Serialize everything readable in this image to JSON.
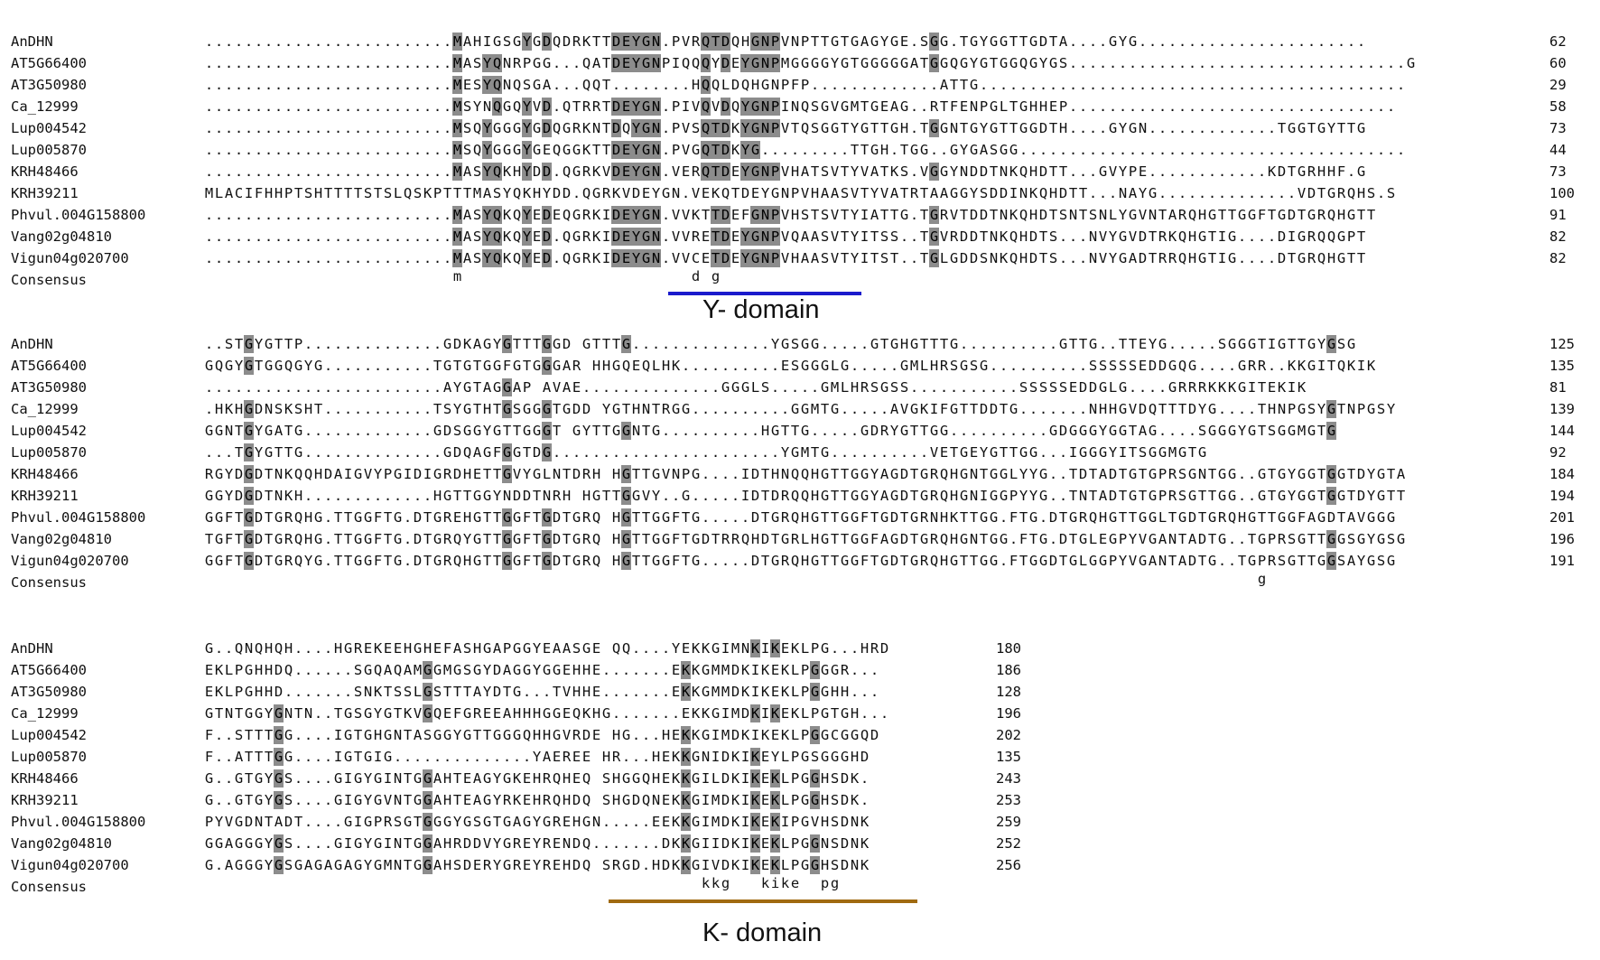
{
  "block1": {
    "names": [
      "AnDHN",
      "AT5G66400",
      "AT3G50980",
      "Ca_12999",
      "Lup004542",
      "Lup005870",
      "KRH48466",
      "KRH39211",
      "Phvul.004G158800",
      "Vang02g04810",
      "Vigun04g020700"
    ],
    "rows": [
      ".........................MAHIGSGYGDQDRKTTDEYGN.PVRQTDQHGNPVNPTTGTGAGYGE.SGG.TGYGGTTGDTA....GYG.......................",
      ".........................MASYQNRPGG...QATDEYGNPIQQQYDEYGNPMGGGGYGTGGGGGATGGQGYGTGGQGYGS..................................G",
      ".........................MESYQNQSGA...QQT........HQQLDQHGNPFP.............ATTG...........................................",
      ".........................MSYNQGQYVD.QTRRTDEYGN.PIVQVDQYGNPINQSGVGMTGEAG..RTFENPGLTGHHEP.................................",
      ".........................MSQYGGGYGDQGRKNTDQYGN.PVSQTDKYGNPVTQSGGTYGTTGH.TGGNTGYGTTGGDTH....GYGN.............TGGTGYTTG",
      ".........................MSQYGGGYGEQGGKTTDEYGN.PVGQTDKYG.........TTGH.TGG..GYGASGG.......................................",
      ".........................MASYQKHYDD.QGRKVDEYGN.VERQTDEYGNPVHATSVTYVATKS.VGGYNDDTNKQHDTT...GVYPE............KDTGRHHF.G",
      "MLACIFHHPTSHTTTTSTSLQSKPTTTMASYQKHYDD.QGRKVDEYGN.VEKQTDEYGNPVHAASVTYVATRTAAGGYSDDINKQHDTT...NAYG..............VDTGRQHS.S",
      ".........................MASYQKQYEDEQGRKIDEYGN.VVKTTDEFGNPVHSTSVTYIATTG.TGRVTDDTNKQHDTSNTSNLYGVNTARQHGTTGGFTGDTGRQHGTT",
      ".........................MASYQKQYED.QGRKIDEYGN.VVRETDEYGNPVQAASVTYITSS..TGVRDDTNKQHDTS...NVYGVDTRKQHGTIG....DIGRQQGPT",
      ".........................MASYQKQYED.QGRKIDEYGN.VVCETDEYGNPVHAASVTYITST..TGLGDDSNKQHDTS...NVYGADTRRQHGTIG....DTGRQHGTT"
    ],
    "consensus": "                         m                       d g",
    "positions": [
      "62",
      "60",
      "29",
      "58",
      "73",
      "44",
      "73",
      "100",
      "91",
      "82",
      "82"
    ],
    "consensus_label": "Consensus"
  },
  "block2": {
    "names": [
      "AnDHN",
      "AT5G66400",
      "AT3G50980",
      "Ca_12999",
      "Lup004542",
      "Lup005870",
      "KRH48466",
      "KRH39211",
      "Phvul.004G158800",
      "Vang02g04810",
      "Vigun04g020700"
    ],
    "rows": [
      "..STGYGTTP..............GDKAGYGTTTGGD GTTTG..............YGSGG.....GTGHGTTTG..........GTTG..TTEYG.....SGGGTIGTTGYGSG",
      "GQGYGTGGQGYG...........TGTGTGGFGTGGGAR HHGQEQLHK..........ESGGGLG.....GMLHRSGSG..........SSSSSEDDGQG....GRR..KKGITQKIK",
      "........................AYGTAGGAP AVAE..............GGGLS.....GMLHRSGSS...........SSSSSEDDGLG....GRRRKKKGITEKIK",
      ".HKHGDNSKSHT...........TSYGTHTGSGGGTGDD YGTHNTRGG..........GGMTG.....AVGKIFGTTDDTG.......NHHGVDQTTTDYG....THNPGSYGTNPGSY",
      "GGNTGYGATG.............GDSGGYGTTGGGT GYTTGGNTG..........HGTTG.....GDRYGTTGG..........GDGGGYGGTAG....SGGGYGTSGGMGTG",
      "...TGYGTTG..............GDQAGFGGTDG.......................YGMTG..........VETGEYGTTGG...IGGGYITSGGMGTG",
      "RGYDGDTNKQQHDAIGVYPGIDIGRDHETTGVYGLNTDRH HGTTGVNPG....IDTHNQQHGTTGGYAGDTGRQHGNTGGLYYG..TDTADTGTGPRSGNTGG..GTGYGGTGGTDYGTA",
      "GGYDGDTNKH.............HGTTGGYNDDTNRH HGTTGGVY..G.....IDTDRQQHGTTGGYAGDTGRQHGNIGGPYYG..TNTADTGTGPRSGTTGG..GTGYGGTGGTDYGTT",
      "GGFTGDTGRQHG.TTGGFTG.DTGREHGTTGGFTGDTGRQ HGTTGGFTG.....DTGRQHGTTGGFTGDTGRNHKTTGG.FTG.DTGRQHGTTGGLTGDTGRQHGTTGGFAGDTAVGGG",
      "TGFTGDTGRQHG.TTGGFTG.DTGRQYGTTGGFTGDTGRQ HGTTGGFTGDTRRQHDTGRLHGTTGGFAGDTGRQHGNTGG.FTG.DTGLEGPYVGANTADTG..TGPRSGTTGGSGYGSG",
      "GGFTGDTGRQYG.TTGGFTG.DTGRQHGTTGGFTGDTGRQ HGTTGGFTG.....DTGRQHGTTGGFTGDTGRQHGTTGG.FTGGDTGLGGPYVGANTADTG..TGPRSGTTGGSAYGSG"
    ],
    "consensus": "                                                                                                          g",
    "positions": [
      "125",
      "135",
      "81",
      "139",
      "144",
      "92",
      "184",
      "194",
      "201",
      "196",
      "191"
    ],
    "consensus_label": "Consensus"
  },
  "block3": {
    "names": [
      "AnDHN",
      "AT5G66400",
      "AT3G50980",
      "Ca_12999",
      "Lup004542",
      "Lup005870",
      "KRH48466",
      "KRH39211",
      "Phvul.004G158800",
      "Vang02g04810",
      "Vigun04g020700"
    ],
    "rows": [
      "G..QNQHQH....HGREKEEHGHEFASHGAPGGYEAASGE QQ....YEKKGIMNKIKEKLPG...HRD",
      "EKLPGHHDQ......SGQAQAMGGMGSGYDAGGYGGEHHE.......EKKGMMDKIKEKLPGGGR...",
      "EKLPGHHD.......SNKTSSLGSTTTAYDTG...TVHHE.......EKKGMMDKIKEKLPGGHH...",
      "GTNTGGYGNTN..TGSGYGTKVGQEFGREEAHHHGGEQKHG.......EKKGIMDKIKEKLPGTGH...",
      "F..STTTGG....IGTGHGNTASGGYGTTGGGQHHGVRDE HG...HEKKGIMDKIKEKLPGGCGGQD",
      "F..ATTTGG....IGTGIG..............YAEREE HR...HEKKGNIDKIKEYLPGSGGGHD",
      "G..GTGYGS....GIGYGINTGGAHTEAGYGKEHRQHEQ SHGGQHEKKGILDKIKEKLPGGHSDK.",
      "G..GTGYGS....GIGYGVNTGGAHTEAGYRKEHRQHDQ SHGDQNEKKGIMDKIKEKLPGGHSDK.",
      "PYVGDNTADT....GIGPRSGTGGGYGSGTGAGYGREHGN.....EEKKGIMDKIKEKIPGVHSDNK",
      "GGAGGGYGS....GIGYGINTGGAHRDDVYGREYRENDQ.......DKKGIIDKIKEKLPGGNSDNK",
      "G.AGGGYGSGAGAGAGYGMNTGGAHSDERYGREYREHDQ SRGD.HDKKGIVDKIKEKLPGGHSDNK"
    ],
    "consensus": "                                                  kkg   kike  pg",
    "positions": [
      "180",
      "186",
      "128",
      "196",
      "202",
      "135",
      "243",
      "253",
      "259",
      "252",
      "256"
    ],
    "consensus_label": "Consensus"
  },
  "domains": {
    "y_label": "Y- domain",
    "k_label": "K- domain",
    "y_color": "#1a1acc",
    "k_color": "#a06a10"
  },
  "colors": {
    "identical": "#000000",
    "similar": "#8c8c8c"
  }
}
